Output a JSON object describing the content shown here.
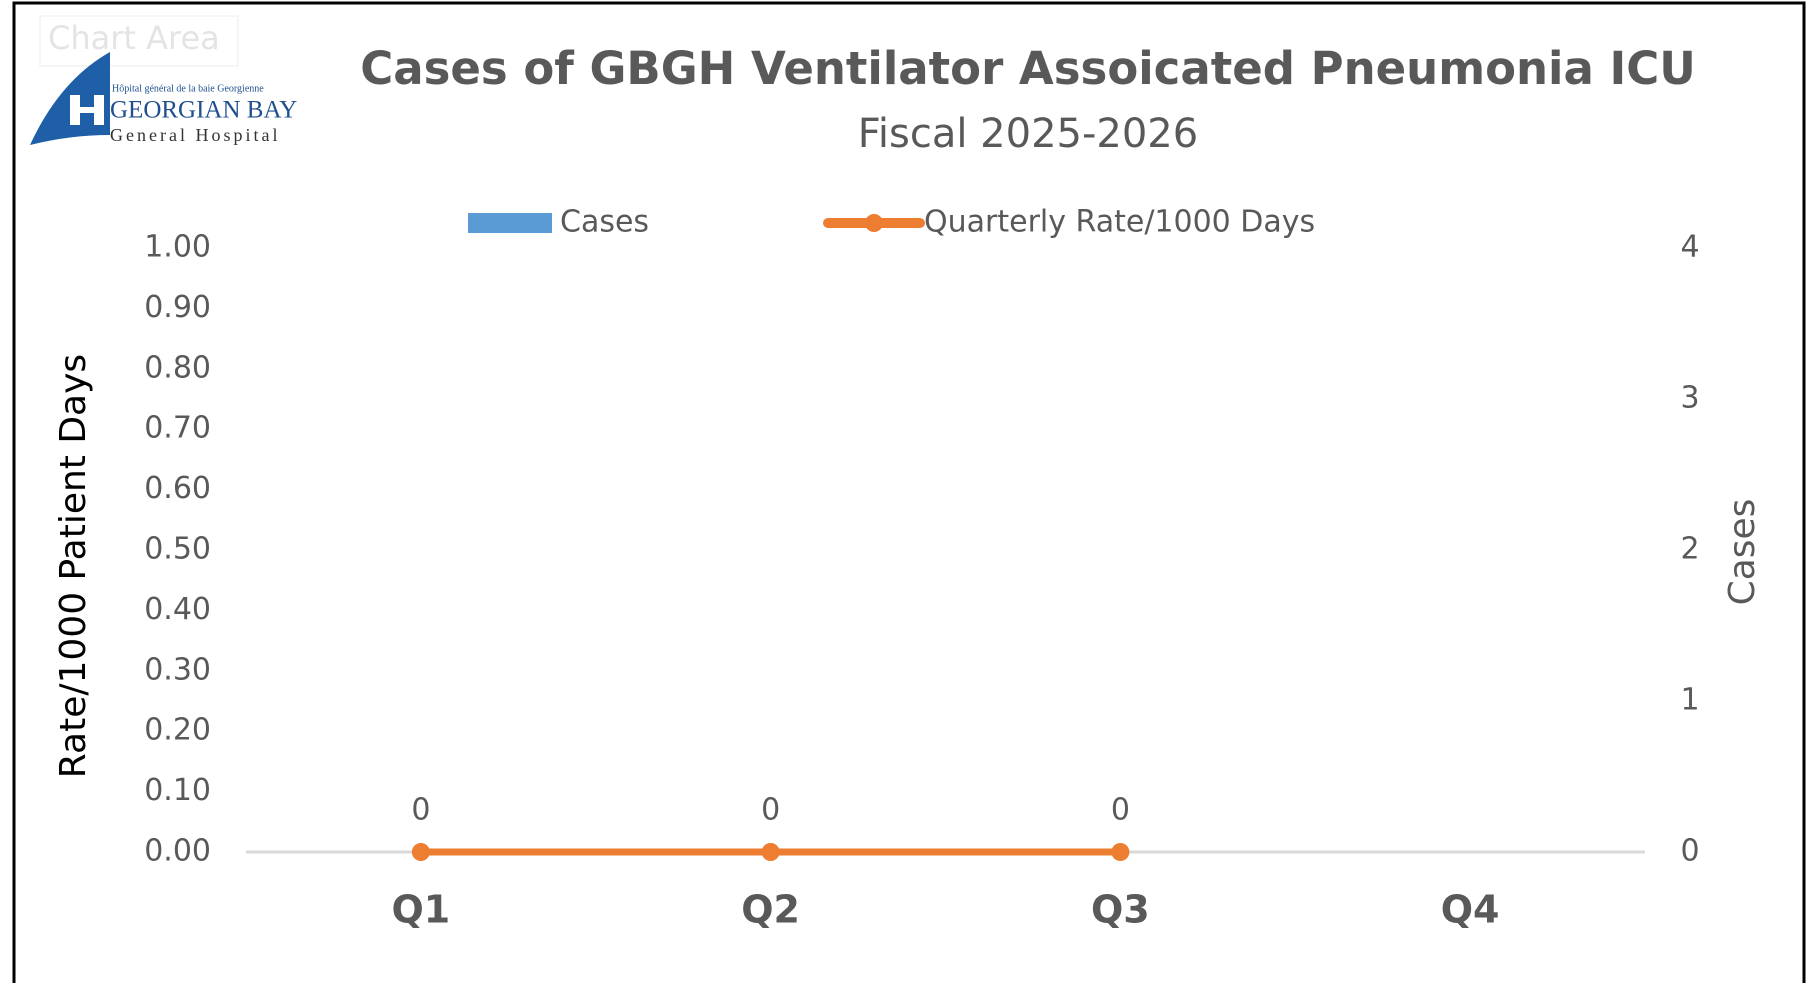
{
  "tooltip": "Chart Area",
  "logo": {
    "french": "Hôpital général de la baie Georgienne",
    "name": "GEORGIAN BAY",
    "sub": "General Hospital"
  },
  "chart_data": {
    "type": "bar",
    "title": "Cases of GBGH Ventilator Assoicated Pneumonia ICU",
    "subtitle": "Fiscal 2025-2026",
    "y_label": "Rate/1000 Patient Days",
    "y2_label": "Cases",
    "categories": [
      "Q1",
      "Q2",
      "Q3",
      "Q4"
    ],
    "series": [
      {
        "name": "Cases",
        "type": "bar",
        "color": "#5b9bd5",
        "axis": "y2",
        "values": [
          0,
          0,
          0,
          null
        ]
      },
      {
        "name": "Quarterly Rate/1000 Days",
        "type": "line",
        "color": "#ed7d31",
        "axis": "y",
        "values": [
          0,
          0,
          0,
          null
        ]
      }
    ],
    "ylim": [
      0,
      1
    ],
    "yticks": [
      {
        "value": 0,
        "label": "0.00"
      },
      {
        "value": 0.1,
        "label": "0.10"
      },
      {
        "value": 0.2,
        "label": "0.20"
      },
      {
        "value": 0.3,
        "label": "0.30"
      },
      {
        "value": 0.4,
        "label": "0.40"
      },
      {
        "value": 0.5,
        "label": "0.50"
      },
      {
        "value": 0.6,
        "label": "0.60"
      },
      {
        "value": 0.7,
        "label": "0.70"
      },
      {
        "value": 0.8,
        "label": "0.80"
      },
      {
        "value": 0.9,
        "label": "0.90"
      },
      {
        "value": 1,
        "label": "1.00"
      }
    ],
    "y2lim": [
      0,
      4
    ],
    "y2ticks": [
      0,
      1,
      2,
      3,
      4
    ],
    "legend": "top"
  }
}
